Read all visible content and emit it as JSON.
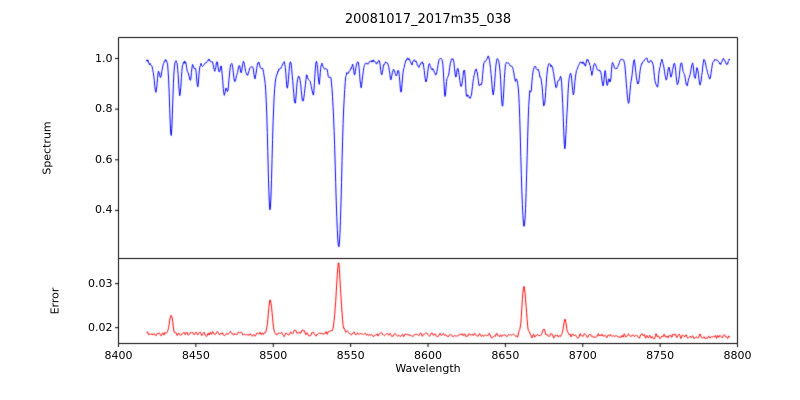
{
  "figure": {
    "title": "20081017_2017m35_038",
    "xlabel": "Wavelength",
    "ylabel_spectrum": "Spectrum",
    "ylabel_error": "Error",
    "background": "#ffffff"
  },
  "chart_data": [
    {
      "type": "line",
      "name": "spectrum",
      "title": "20081017_2017m35_038",
      "ylabel": "Spectrum",
      "series_color": "#0000ff",
      "xlim": [
        8400,
        8800
      ],
      "ylim": [
        0.21,
        1.083
      ],
      "y_tick_labels": [
        "0.4",
        "0.6",
        "0.8",
        "1.0"
      ],
      "grid": false,
      "legend": "none",
      "x_range": [
        8418,
        8795
      ],
      "continuum": 0.99,
      "noise_amp": 0.025,
      "noise_seed": 99,
      "absorption_lines": [
        {
          "center": 8498.0,
          "depth": 0.48,
          "sigma": 1.4
        },
        {
          "center": 8498.0,
          "depth": 0.055,
          "sigma": 5.0
        },
        {
          "center": 8542.1,
          "depth": 0.655,
          "sigma": 1.9
        },
        {
          "center": 8542.1,
          "depth": 0.06,
          "sigma": 6.0
        },
        {
          "center": 8662.1,
          "depth": 0.6,
          "sigma": 1.7
        },
        {
          "center": 8662.1,
          "depth": 0.065,
          "sigma": 5.5
        },
        {
          "center": 8424.2,
          "depth": 0.12,
          "sigma": 0.9
        },
        {
          "center": 8434.0,
          "depth": 0.29,
          "sigma": 1.0
        },
        {
          "center": 8439.6,
          "depth": 0.09,
          "sigma": 0.8
        },
        {
          "center": 8446.4,
          "depth": 0.07,
          "sigma": 0.8
        },
        {
          "center": 8451.0,
          "depth": 0.06,
          "sigma": 0.7
        },
        {
          "center": 8468.4,
          "depth": 0.13,
          "sigma": 1.0
        },
        {
          "center": 8475.0,
          "depth": 0.07,
          "sigma": 0.8
        },
        {
          "center": 8488.1,
          "depth": 0.06,
          "sigma": 0.8
        },
        {
          "center": 8514.1,
          "depth": 0.16,
          "sigma": 0.9
        },
        {
          "center": 8519.0,
          "depth": 0.16,
          "sigma": 0.9
        },
        {
          "center": 8526.0,
          "depth": 0.07,
          "sigma": 0.8
        },
        {
          "center": 8556.8,
          "depth": 0.07,
          "sigma": 0.8
        },
        {
          "center": 8582.3,
          "depth": 0.08,
          "sigma": 0.8
        },
        {
          "center": 8598.8,
          "depth": 0.07,
          "sigma": 0.8
        },
        {
          "center": 8611.0,
          "depth": 0.08,
          "sigma": 0.8
        },
        {
          "center": 8621.6,
          "depth": 0.09,
          "sigma": 0.8
        },
        {
          "center": 8648.5,
          "depth": 0.08,
          "sigma": 0.8
        },
        {
          "center": 8674.7,
          "depth": 0.15,
          "sigma": 0.9
        },
        {
          "center": 8688.6,
          "depth": 0.27,
          "sigma": 1.1
        },
        {
          "center": 8713.2,
          "depth": 0.08,
          "sigma": 0.8
        },
        {
          "center": 8736.0,
          "depth": 0.07,
          "sigma": 0.8
        },
        {
          "center": 8747.0,
          "depth": 0.08,
          "sigma": 0.8
        },
        {
          "center": 8757.0,
          "depth": 0.06,
          "sigma": 0.7
        },
        {
          "center": 8775.7,
          "depth": 0.1,
          "sigma": 0.9
        }
      ],
      "weak_line_field": {
        "count": 120,
        "depth_min": 0.015,
        "depth_max": 0.07,
        "sigma_min": 0.5,
        "sigma_max": 1.0,
        "seed": 7
      }
    },
    {
      "type": "line",
      "name": "error",
      "xlabel": "Wavelength",
      "ylabel": "Error",
      "series_color": "#ff0000",
      "xlim": [
        8400,
        8800
      ],
      "ylim": [
        0.0164,
        0.0357
      ],
      "x_tick_labels": [
        "8400",
        "8450",
        "8500",
        "8550",
        "8600",
        "8650",
        "8700",
        "8750",
        "8800"
      ],
      "y_tick_labels": [
        "0.02",
        "0.03"
      ],
      "grid": false,
      "legend": "none",
      "x_range": [
        8418,
        8795
      ],
      "baseline": 0.0187,
      "slope": -2e-06,
      "noise_amp": 0.0006,
      "noise_seed": 55,
      "peaks": [
        {
          "center": 8434.0,
          "height": 0.0042,
          "sigma": 1.0
        },
        {
          "center": 8498.0,
          "height": 0.0078,
          "sigma": 1.2
        },
        {
          "center": 8514.1,
          "height": 0.0012,
          "sigma": 0.9
        },
        {
          "center": 8519.0,
          "height": 0.0012,
          "sigma": 0.9
        },
        {
          "center": 8542.1,
          "height": 0.0148,
          "sigma": 1.4
        },
        {
          "center": 8542.1,
          "height": 0.0012,
          "sigma": 5.0
        },
        {
          "center": 8662.1,
          "height": 0.0112,
          "sigma": 1.3
        },
        {
          "center": 8674.7,
          "height": 0.0018,
          "sigma": 0.9
        },
        {
          "center": 8688.6,
          "height": 0.0038,
          "sigma": 1.0
        }
      ]
    }
  ]
}
